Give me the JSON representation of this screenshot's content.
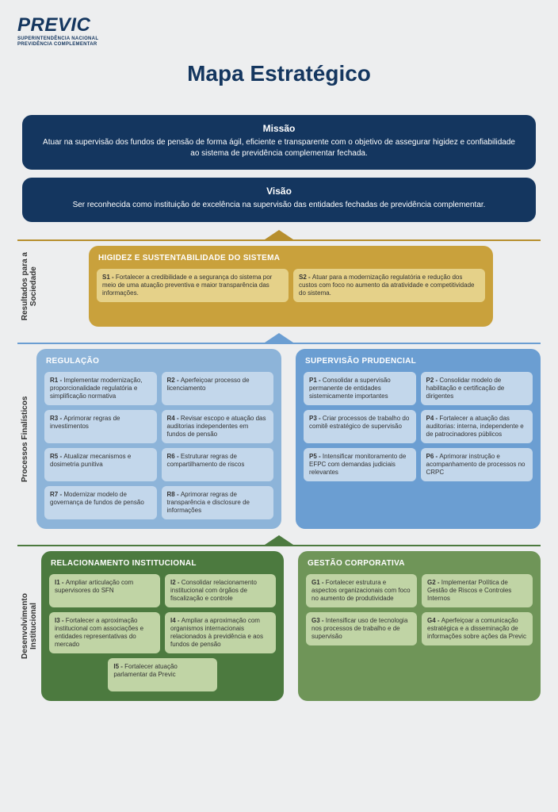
{
  "logo": {
    "main": "PREVIC",
    "sub1": "SUPERINTENDÊNCIA NACIONAL",
    "sub2": "PREVIDÊNCIA COMPLEMENTAR"
  },
  "title": "Mapa Estratégico",
  "mission": {
    "heading": "Missão",
    "text": "Atuar na supervisão dos fundos de pensão de forma ágil, eficiente e transparente com o objetivo de assegurar higidez e confiabilidade ao sistema de previdência complementar fechada."
  },
  "vision": {
    "heading": "Visão",
    "text": "Ser reconhecida como instituição de excelência na supervisão das entidades fechadas de previdência complementar."
  },
  "sections": {
    "results": {
      "label": "Resultados para a\nSociedade",
      "category": {
        "title": "HIGIDEZ E SUSTENTABILIDADE DO SISTEMA",
        "cards": [
          {
            "code": "S1",
            "text": "Fortalecer a credibilidade e a segurança do sistema por meio de uma atuação preventiva e maior transparência das informações."
          },
          {
            "code": "S2",
            "text": "Atuar para a modernização regulatória e redução dos custos com foco no aumento da atratividade e competitividade do sistema."
          }
        ]
      }
    },
    "processes": {
      "label": "Processos Finalísticos",
      "left": {
        "title": "REGULAÇÃO",
        "cards": [
          {
            "code": "R1",
            "text": "Implementar modernização, proporcionalidade regulatória e simplificação normativa"
          },
          {
            "code": "R2",
            "text": "Aperfeiçoar processo de licenciamento"
          },
          {
            "code": "R3",
            "text": "Aprimorar regras de investimentos"
          },
          {
            "code": "R4",
            "text": "Revisar escopo e atuação das auditorias independentes em fundos de pensão"
          },
          {
            "code": "R5",
            "text": "Atualizar mecanismos e dosimetria punitiva"
          },
          {
            "code": "R6",
            "text": "Estruturar regras de compartilhamento de riscos"
          },
          {
            "code": "R7",
            "text": "Modernizar modelo de governança de fundos de pensão"
          },
          {
            "code": "R8",
            "text": "Aprimorar regras de transparência e disclosure de informações"
          }
        ]
      },
      "right": {
        "title": "SUPERVISÃO PRUDENCIAL",
        "cards": [
          {
            "code": "P1",
            "text": "Consolidar a supervisão permanente de entidades sistemicamente importantes"
          },
          {
            "code": "P2",
            "text": "Consolidar modelo de habilitação e certificação de dirigentes"
          },
          {
            "code": "P3",
            "text": "Criar processos de trabalho do comitê estratégico de supervisão"
          },
          {
            "code": "P4",
            "text": "Fortalecer a atuação das auditorias: interna, independente e de patrocinadores públicos"
          },
          {
            "code": "P5",
            "text": "Intensificar monitoramento de EFPC com demandas judiciais relevantes"
          },
          {
            "code": "P6",
            "text": "Aprimorar instrução e acompanhamento de processos no CRPC"
          }
        ]
      }
    },
    "institutional": {
      "label": "Desenvolvimento\nInstitucional",
      "left": {
        "title": "RELACIONAMENTO INSTITUCIONAL",
        "cards": [
          {
            "code": "I1",
            "text": "Ampliar articulação com supervisores do SFN"
          },
          {
            "code": "I2",
            "text": "Consolidar relacionamento institucional com órgãos de fiscalização e controle"
          },
          {
            "code": "I3",
            "text": "Fortalecer a aproximação institucional com associações e entidades representativas do mercado"
          },
          {
            "code": "I4",
            "text": "Ampliar a aproximação com organismos internacionais relacionados à previdência e aos fundos de pensão"
          },
          {
            "code": "I5",
            "text": "Fortalecer atuação parlamentar da Previc"
          }
        ]
      },
      "right": {
        "title": "GESTÃO CORPORATIVA",
        "cards": [
          {
            "code": "G1",
            "text": "Fortalecer estrutura e aspectos organizacionais com foco no aumento de produtividade"
          },
          {
            "code": "G2",
            "text": "Implementar Política de Gestão de Riscos e Controles Internos"
          },
          {
            "code": "G3",
            "text": "Intensificar uso de tecnologia nos processos de trabalho e de supervisão"
          },
          {
            "code": "G4",
            "text": "Aperfeiçoar a comunicação estratégica e a disseminação de informações sobre ações da Previc"
          }
        ]
      }
    }
  },
  "colors": {
    "navy": "#14365f",
    "gold": "#b78f2e",
    "gold_card": "#e5d189",
    "blue_light": "#8db4d9",
    "blue_med": "#6b9ed2",
    "blue_card": "#c3d7eb",
    "green_dark": "#4c7a3f",
    "green_med": "#6f9558",
    "green_card": "#c0d4a5",
    "page_bg": "#edeeef"
  }
}
